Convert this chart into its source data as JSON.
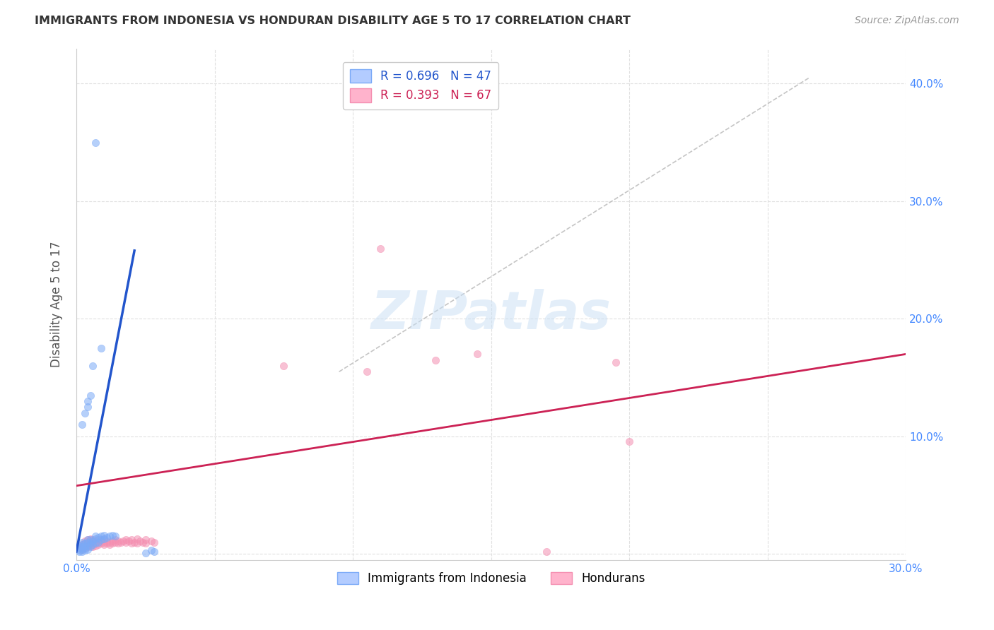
{
  "title": "IMMIGRANTS FROM INDONESIA VS HONDURAN DISABILITY AGE 5 TO 17 CORRELATION CHART",
  "source": "Source: ZipAtlas.com",
  "ylabel": "Disability Age 5 to 17",
  "xlim": [
    0.0,
    0.3
  ],
  "ylim": [
    -0.005,
    0.43
  ],
  "xticks": [
    0.0,
    0.05,
    0.1,
    0.15,
    0.2,
    0.25,
    0.3
  ],
  "xtick_labels": [
    "0.0%",
    "",
    "",
    "",
    "",
    "",
    "30.0%"
  ],
  "yticks": [
    0.0,
    0.1,
    0.2,
    0.3,
    0.4
  ],
  "ytick_labels": [
    "",
    "10.0%",
    "20.0%",
    "30.0%",
    "40.0%"
  ],
  "indonesia_color": "#7baaf7",
  "honduras_color": "#f48fb1",
  "indonesia_scatter": [
    [
      0.001,
      0.002
    ],
    [
      0.001,
      0.003
    ],
    [
      0.001,
      0.005
    ],
    [
      0.001,
      0.007
    ],
    [
      0.002,
      0.002
    ],
    [
      0.002,
      0.004
    ],
    [
      0.002,
      0.006
    ],
    [
      0.002,
      0.008
    ],
    [
      0.002,
      0.01
    ],
    [
      0.003,
      0.003
    ],
    [
      0.003,
      0.005
    ],
    [
      0.003,
      0.007
    ],
    [
      0.003,
      0.009
    ],
    [
      0.004,
      0.004
    ],
    [
      0.004,
      0.007
    ],
    [
      0.004,
      0.01
    ],
    [
      0.004,
      0.012
    ],
    [
      0.005,
      0.006
    ],
    [
      0.005,
      0.009
    ],
    [
      0.005,
      0.012
    ],
    [
      0.006,
      0.008
    ],
    [
      0.006,
      0.011
    ],
    [
      0.007,
      0.009
    ],
    [
      0.007,
      0.013
    ],
    [
      0.007,
      0.015
    ],
    [
      0.008,
      0.01
    ],
    [
      0.008,
      0.014
    ],
    [
      0.009,
      0.012
    ],
    [
      0.009,
      0.015
    ],
    [
      0.01,
      0.013
    ],
    [
      0.01,
      0.016
    ],
    [
      0.011,
      0.014
    ],
    [
      0.012,
      0.015
    ],
    [
      0.013,
      0.016
    ],
    [
      0.014,
      0.015
    ],
    [
      0.002,
      0.11
    ],
    [
      0.003,
      0.12
    ],
    [
      0.004,
      0.125
    ],
    [
      0.004,
      0.13
    ],
    [
      0.005,
      0.135
    ],
    [
      0.006,
      0.16
    ],
    [
      0.009,
      0.175
    ],
    [
      0.025,
      0.001
    ],
    [
      0.027,
      0.003
    ],
    [
      0.028,
      0.002
    ],
    [
      0.007,
      0.35
    ]
  ],
  "honduras_scatter": [
    [
      0.001,
      0.005
    ],
    [
      0.001,
      0.007
    ],
    [
      0.002,
      0.004
    ],
    [
      0.002,
      0.006
    ],
    [
      0.002,
      0.008
    ],
    [
      0.003,
      0.005
    ],
    [
      0.003,
      0.007
    ],
    [
      0.003,
      0.009
    ],
    [
      0.003,
      0.011
    ],
    [
      0.004,
      0.006
    ],
    [
      0.004,
      0.008
    ],
    [
      0.004,
      0.01
    ],
    [
      0.004,
      0.012
    ],
    [
      0.005,
      0.007
    ],
    [
      0.005,
      0.009
    ],
    [
      0.005,
      0.011
    ],
    [
      0.005,
      0.013
    ],
    [
      0.006,
      0.006
    ],
    [
      0.006,
      0.008
    ],
    [
      0.006,
      0.01
    ],
    [
      0.006,
      0.012
    ],
    [
      0.007,
      0.007
    ],
    [
      0.007,
      0.009
    ],
    [
      0.007,
      0.011
    ],
    [
      0.008,
      0.008
    ],
    [
      0.008,
      0.01
    ],
    [
      0.008,
      0.012
    ],
    [
      0.009,
      0.009
    ],
    [
      0.009,
      0.011
    ],
    [
      0.01,
      0.008
    ],
    [
      0.01,
      0.01
    ],
    [
      0.01,
      0.013
    ],
    [
      0.011,
      0.009
    ],
    [
      0.011,
      0.011
    ],
    [
      0.012,
      0.008
    ],
    [
      0.012,
      0.01
    ],
    [
      0.013,
      0.009
    ],
    [
      0.013,
      0.011
    ],
    [
      0.014,
      0.01
    ],
    [
      0.014,
      0.012
    ],
    [
      0.015,
      0.009
    ],
    [
      0.015,
      0.011
    ],
    [
      0.016,
      0.01
    ],
    [
      0.017,
      0.011
    ],
    [
      0.018,
      0.01
    ],
    [
      0.018,
      0.012
    ],
    [
      0.019,
      0.011
    ],
    [
      0.02,
      0.009
    ],
    [
      0.02,
      0.012
    ],
    [
      0.021,
      0.01
    ],
    [
      0.022,
      0.009
    ],
    [
      0.022,
      0.013
    ],
    [
      0.023,
      0.011
    ],
    [
      0.024,
      0.01
    ],
    [
      0.025,
      0.009
    ],
    [
      0.025,
      0.012
    ],
    [
      0.027,
      0.011
    ],
    [
      0.028,
      0.01
    ],
    [
      0.17,
      0.002
    ],
    [
      0.075,
      0.16
    ],
    [
      0.105,
      0.155
    ],
    [
      0.11,
      0.26
    ],
    [
      0.13,
      0.165
    ],
    [
      0.145,
      0.17
    ],
    [
      0.195,
      0.163
    ],
    [
      0.2,
      0.096
    ]
  ],
  "indonesia_trend_x": [
    0.0,
    0.021
  ],
  "indonesia_trend_y": [
    0.002,
    0.258
  ],
  "honduras_trend_x": [
    0.0,
    0.3
  ],
  "honduras_trend_y": [
    0.058,
    0.17
  ],
  "dashed_line_x": [
    0.095,
    0.265
  ],
  "dashed_line_y": [
    0.155,
    0.405
  ],
  "watermark": "ZIPatlas",
  "background_color": "#ffffff",
  "grid_color": "#e0e0e0",
  "title_color": "#333333"
}
